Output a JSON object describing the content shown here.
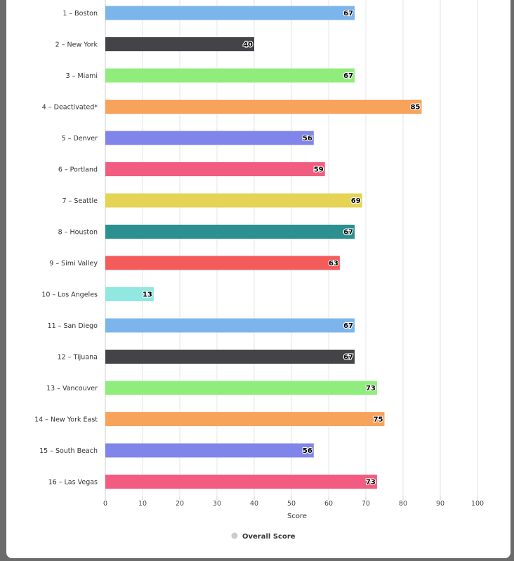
{
  "chart_data": {
    "type": "bar",
    "orientation": "horizontal",
    "categories": [
      "1 – Boston",
      "2 – New York",
      "3 – Miami",
      "4 – Deactivated*",
      "5 – Denver",
      "6 – Portland",
      "7 – Seattle",
      "8 – Houston",
      "9 – Simi Valley",
      "10 – Los Angeles",
      "11 – San Diego",
      "12 – Tijuana",
      "13 – Vancouver",
      "14 – New York East",
      "15 – South Beach",
      "16 – Las Vegas"
    ],
    "series": [
      {
        "name": "Overall Score",
        "values": [
          67,
          40,
          67,
          85,
          56,
          59,
          69,
          67,
          63,
          13,
          67,
          67,
          73,
          75,
          56,
          73
        ]
      }
    ],
    "bar_colors": [
      "#7cb5ec",
      "#434348",
      "#90ed7d",
      "#f7a35c",
      "#8085e9",
      "#f15c80",
      "#e4d354",
      "#2b908f",
      "#f45b5b",
      "#91e8e1",
      "#7cb5ec",
      "#434348",
      "#90ed7d",
      "#f7a35c",
      "#8085e9",
      "#f15c80"
    ],
    "xlabel": "Score",
    "ylabel": "",
    "xlim": [
      0,
      100
    ],
    "ticks": [
      0,
      10,
      20,
      30,
      40,
      50,
      60,
      70,
      80,
      90,
      100
    ],
    "grid": true,
    "legend": {
      "position": "bottom-center",
      "marker_color": "#cccccc"
    }
  }
}
